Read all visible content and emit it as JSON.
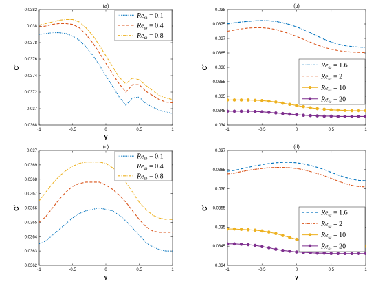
{
  "chart_data": [
    {
      "id": "a",
      "type": "line",
      "title": "(a)",
      "xlabel": "y",
      "ylabel": "C*",
      "xlim": [
        -1,
        1
      ],
      "ylim": [
        0.0368,
        0.0382
      ],
      "xticks": [
        -1,
        -0.5,
        0,
        0.5,
        1
      ],
      "xtick_labels": [
        "-1",
        "-0.5",
        "0",
        "0.5",
        "1"
      ],
      "yticks": [
        0.0368,
        0.037,
        0.0372,
        0.0374,
        0.0376,
        0.0378,
        0.038,
        0.0382
      ],
      "ytick_labels": [
        "0.0368",
        "0.037",
        "0.0372",
        "0.0374",
        "0.0376",
        "0.0378",
        "0.038",
        "0.0382"
      ],
      "legend_position": "top-right",
      "x": [
        -1,
        -0.9,
        -0.8,
        -0.7,
        -0.6,
        -0.5,
        -0.4,
        -0.3,
        -0.2,
        -0.1,
        0,
        0.1,
        0.2,
        0.3,
        0.4,
        0.5,
        0.6,
        0.7,
        0.8,
        0.9,
        1
      ],
      "series": [
        {
          "name": "Re_ω = 0.1",
          "legend_lhs": "Re",
          "legend_sub": "ω",
          "legend_rhs": "= 0.1",
          "color": "#0072BD",
          "dash": "1.2,1.4",
          "marker": "none",
          "values": [
            0.0379,
            0.03791,
            0.03792,
            0.03792,
            0.03791,
            0.03788,
            0.03783,
            0.03775,
            0.03765,
            0.03753,
            0.0374,
            0.03727,
            0.03714,
            0.03704,
            0.03713,
            0.03714,
            0.03706,
            0.03702,
            0.03698,
            0.03696,
            0.03694
          ]
        },
        {
          "name": "Re_ω = 0.4",
          "legend_lhs": "Re",
          "legend_sub": "ω",
          "legend_rhs": "= 0.4",
          "color": "#D95319",
          "dash": "4,2.5",
          "marker": "none",
          "values": [
            0.03799,
            0.038,
            0.03802,
            0.03803,
            0.03803,
            0.03802,
            0.03798,
            0.0379,
            0.0378,
            0.03768,
            0.03755,
            0.03742,
            0.0373,
            0.0372,
            0.03729,
            0.03729,
            0.03721,
            0.03716,
            0.03711,
            0.03708,
            0.03707
          ]
        },
        {
          "name": "Re_ω = 0.8",
          "legend_lhs": "Re",
          "legend_sub": "ω",
          "legend_rhs": "= 0.8",
          "color": "#EDB120",
          "dash": "4,1.5,1,1.5",
          "marker": "none",
          "values": [
            0.03801,
            0.03803,
            0.03805,
            0.03807,
            0.03808,
            0.03808,
            0.03805,
            0.03798,
            0.03789,
            0.03777,
            0.03764,
            0.03751,
            0.03738,
            0.0373,
            0.03737,
            0.03735,
            0.03728,
            0.03722,
            0.03716,
            0.03713,
            0.03711
          ]
        }
      ]
    },
    {
      "id": "b",
      "type": "line",
      "title": "(b)",
      "xlabel": "",
      "ylabel": "C*",
      "xlim": [
        -1,
        1
      ],
      "ylim": [
        0.034,
        0.038
      ],
      "xticks": [
        -1,
        -0.5,
        0,
        0.5,
        1
      ],
      "xtick_labels": [
        "-1",
        "-0.5",
        "0",
        "0.5",
        "1"
      ],
      "yticks": [
        0.034,
        0.0345,
        0.035,
        0.0355,
        0.036,
        0.0365,
        0.037,
        0.0375,
        0.038
      ],
      "ytick_labels": [
        "0.034",
        "0.0345",
        "0.035",
        "0.0355",
        "0.036",
        "0.0365",
        "0.037",
        "0.0375",
        "0.038"
      ],
      "legend_position": "center-right",
      "x": [
        -1,
        -0.9,
        -0.8,
        -0.7,
        -0.6,
        -0.5,
        -0.4,
        -0.3,
        -0.2,
        -0.1,
        0,
        0.1,
        0.2,
        0.3,
        0.4,
        0.5,
        0.6,
        0.7,
        0.8,
        0.9,
        1
      ],
      "series": [
        {
          "name": "Re_ω = 1.6",
          "legend_lhs": "Re",
          "legend_sub": "ω",
          "legend_rhs": "= 1.6",
          "color": "#0072BD",
          "dash": "4,1.5,1,1.5",
          "marker": "none",
          "values": [
            0.03751,
            0.03754,
            0.03757,
            0.03759,
            0.03761,
            0.03762,
            0.03761,
            0.03759,
            0.03754,
            0.03748,
            0.0374,
            0.0373,
            0.0372,
            0.03708,
            0.03697,
            0.03688,
            0.0368,
            0.03675,
            0.03672,
            0.0367,
            0.03669
          ]
        },
        {
          "name": "Re_ω = 2",
          "legend_lhs": "Re",
          "legend_sub": "ω",
          "legend_rhs": "= 2",
          "color": "#D95319",
          "dash": "4,2.5",
          "marker": "none",
          "values": [
            0.03725,
            0.03729,
            0.03733,
            0.03736,
            0.03737,
            0.03737,
            0.03735,
            0.03731,
            0.03724,
            0.03716,
            0.03707,
            0.03697,
            0.03687,
            0.03677,
            0.03669,
            0.03663,
            0.03658,
            0.03655,
            0.03653,
            0.03652,
            0.03651
          ]
        },
        {
          "name": "Re_ω = 10",
          "legend_lhs": "Re",
          "legend_sub": "ω",
          "legend_rhs": "= 10",
          "color": "#EDB120",
          "dash": "",
          "marker": "circle",
          "values": [
            0.03487,
            0.03487,
            0.03487,
            0.03487,
            0.03486,
            0.03485,
            0.03483,
            0.0348,
            0.03476,
            0.03472,
            0.03468,
            0.03464,
            0.0346,
            0.03457,
            0.03455,
            0.03453,
            0.03452,
            0.03451,
            0.0345,
            0.0345,
            0.0345
          ]
        },
        {
          "name": "Re_ω = 20",
          "legend_lhs": "Re",
          "legend_sub": "ω",
          "legend_rhs": "= 20",
          "color": "#7E2F8E",
          "dash": "",
          "marker": "circle",
          "values": [
            0.03448,
            0.03448,
            0.03448,
            0.03448,
            0.03447,
            0.03446,
            0.03444,
            0.03442,
            0.0344,
            0.03438,
            0.03436,
            0.03434,
            0.03433,
            0.03432,
            0.03431,
            0.03431,
            0.0343,
            0.0343,
            0.0343,
            0.0343,
            0.0343
          ]
        }
      ]
    },
    {
      "id": "c",
      "type": "line",
      "title": "(c)",
      "xlabel": "y",
      "ylabel": "C*",
      "xlim": [
        -1,
        1
      ],
      "ylim": [
        0.0362,
        0.037
      ],
      "xticks": [
        -1,
        -0.5,
        0,
        0.5,
        1
      ],
      "xtick_labels": [
        "-1",
        "-0.5",
        "0",
        "0.5",
        "1"
      ],
      "yticks": [
        0.0362,
        0.0363,
        0.0364,
        0.0365,
        0.0366,
        0.0367,
        0.0368,
        0.0369,
        0.037
      ],
      "ytick_labels": [
        "0.0362",
        "0.0363",
        "0.0364",
        "0.0365",
        "0.0366",
        "0.0367",
        "0.0368",
        "0.0369",
        "0.037"
      ],
      "legend_position": "top-right",
      "x": [
        -1,
        -0.9,
        -0.8,
        -0.7,
        -0.6,
        -0.5,
        -0.4,
        -0.3,
        -0.2,
        -0.1,
        0,
        0.1,
        0.2,
        0.3,
        0.4,
        0.5,
        0.6,
        0.7,
        0.8,
        0.9,
        1
      ],
      "series": [
        {
          "name": "Re_ω = 0.1",
          "legend_lhs": "Re",
          "legend_sub": "ω",
          "legend_rhs": "= 0.1",
          "color": "#0072BD",
          "dash": "1.2,1.4",
          "marker": "none",
          "values": [
            0.03635,
            0.03637,
            0.03641,
            0.03645,
            0.03649,
            0.03653,
            0.03656,
            0.03658,
            0.03659,
            0.0366,
            0.03659,
            0.03658,
            0.03655,
            0.03651,
            0.03646,
            0.03641,
            0.03636,
            0.03633,
            0.03631,
            0.0363,
            0.0363
          ]
        },
        {
          "name": "Re_ω = 0.4",
          "legend_lhs": "Re",
          "legend_sub": "ω",
          "legend_rhs": "= 0.4",
          "color": "#D95319",
          "dash": "4,2.5",
          "marker": "none",
          "values": [
            0.0365,
            0.03654,
            0.0366,
            0.03666,
            0.03671,
            0.03675,
            0.03677,
            0.03678,
            0.03678,
            0.03678,
            0.03676,
            0.03673,
            0.03669,
            0.03664,
            0.03658,
            0.03652,
            0.03647,
            0.03644,
            0.03643,
            0.03643,
            0.03643
          ]
        },
        {
          "name": "Re_ω = 0.8",
          "legend_lhs": "Re",
          "legend_sub": "ω",
          "legend_rhs": "= 0.8",
          "color": "#EDB120",
          "dash": "4,1.5,1,1.5",
          "marker": "none",
          "values": [
            0.03665,
            0.03671,
            0.03677,
            0.03682,
            0.03686,
            0.03689,
            0.03691,
            0.03692,
            0.03692,
            0.03692,
            0.03691,
            0.03688,
            0.03684,
            0.03678,
            0.03671,
            0.03664,
            0.03659,
            0.03655,
            0.03653,
            0.03652,
            0.03652
          ]
        }
      ]
    },
    {
      "id": "d",
      "type": "line",
      "title": "(d)",
      "xlabel": "y",
      "ylabel": "C*",
      "xlim": [
        -1,
        1
      ],
      "ylim": [
        0.034,
        0.037
      ],
      "xticks": [
        -1,
        -0.5,
        0,
        0.5,
        1
      ],
      "xtick_labels": [
        "-1",
        "-0.5",
        "0",
        "0.5",
        "1"
      ],
      "yticks": [
        0.034,
        0.0345,
        0.035,
        0.0355,
        0.036,
        0.0365,
        0.037
      ],
      "ytick_labels": [
        "0.034",
        "0.0345",
        "0.035",
        "0.0355",
        "0.036",
        "0.0365",
        "0.037"
      ],
      "legend_position": "bottom-right",
      "x": [
        -1,
        -0.9,
        -0.8,
        -0.7,
        -0.6,
        -0.5,
        -0.4,
        -0.3,
        -0.2,
        -0.1,
        0,
        0.1,
        0.2,
        0.3,
        0.4,
        0.5,
        0.6,
        0.7,
        0.8,
        0.9,
        1
      ],
      "series": [
        {
          "name": "Re_ω = 1.6",
          "legend_lhs": "Re",
          "legend_sub": "ω",
          "legend_rhs": "= 1.6",
          "color": "#0072BD",
          "dash": "4,2.5",
          "marker": "none",
          "values": [
            0.03646,
            0.03648,
            0.03652,
            0.03656,
            0.0366,
            0.03663,
            0.03666,
            0.03668,
            0.03669,
            0.03669,
            0.03668,
            0.03665,
            0.03661,
            0.03656,
            0.0365,
            0.03643,
            0.03636,
            0.0363,
            0.03625,
            0.03622,
            0.03621
          ]
        },
        {
          "name": "Re_ω = 2",
          "legend_lhs": "Re",
          "legend_sub": "ω",
          "legend_rhs": "= 2",
          "color": "#D95319",
          "dash": "4,1.5,1,1.5",
          "marker": "none",
          "values": [
            0.03639,
            0.03641,
            0.03645,
            0.03648,
            0.03651,
            0.03653,
            0.03655,
            0.03656,
            0.03656,
            0.03655,
            0.03653,
            0.0365,
            0.03645,
            0.0364,
            0.03634,
            0.03627,
            0.0362,
            0.03614,
            0.03609,
            0.03606,
            0.03605
          ]
        },
        {
          "name": "Re_ω = 10",
          "legend_lhs": "Re",
          "legend_sub": "ω",
          "legend_rhs": "= 10",
          "color": "#EDB120",
          "dash": "",
          "marker": "circle",
          "values": [
            0.03495,
            0.03495,
            0.03494,
            0.03493,
            0.03492,
            0.0349,
            0.03487,
            0.03483,
            0.03478,
            0.03473,
            0.03468,
            0.03463,
            0.03459,
            0.03456,
            0.03454,
            0.03452,
            0.03451,
            0.0345,
            0.0345,
            0.0345,
            0.0345
          ]
        },
        {
          "name": "Re_ω = 20",
          "legend_lhs": "Re",
          "legend_sub": "ω",
          "legend_rhs": "= 20",
          "color": "#7E2F8E",
          "dash": "",
          "marker": "circle",
          "values": [
            0.03456,
            0.03456,
            0.03455,
            0.03454,
            0.03452,
            0.03449,
            0.03446,
            0.03442,
            0.03439,
            0.03437,
            0.03435,
            0.03434,
            0.03433,
            0.03432,
            0.03432,
            0.03431,
            0.03431,
            0.03431,
            0.03431,
            0.03431,
            0.03431
          ]
        }
      ]
    }
  ]
}
